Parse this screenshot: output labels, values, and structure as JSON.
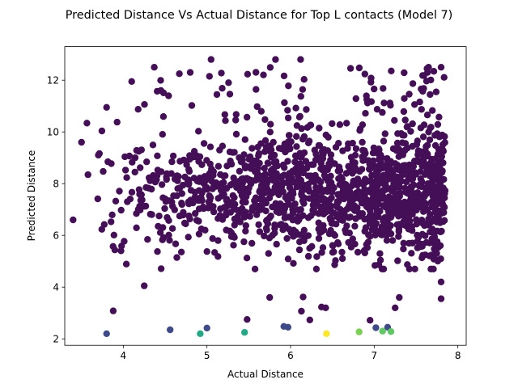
{
  "chart_data": {
    "type": "scatter",
    "title": "Predicted Distance Vs Actual Distance for Top L contacts (Model 7)",
    "xlabel": "Actual Distance",
    "ylabel": "Predicted Distance",
    "xlim": [
      3.3,
      8.1
    ],
    "ylim": [
      1.75,
      13.3
    ],
    "xticks": [
      4,
      5,
      6,
      7,
      8
    ],
    "yticks": [
      2,
      4,
      6,
      8,
      10,
      12
    ],
    "grid": false,
    "legend": "none",
    "colormap": "viridis",
    "cluster": {
      "count": 1500,
      "color": "#440f57",
      "x_range": [
        3.45,
        7.85
      ],
      "y_center": 7.6,
      "y_spread": 1.15,
      "y_min": 4.7,
      "y_max": 12.8
    },
    "outliers": [
      {
        "x": 3.4,
        "y": 6.6,
        "color": "#440f57"
      },
      {
        "x": 3.5,
        "y": 9.6,
        "color": "#440f57"
      },
      {
        "x": 3.8,
        "y": 10.95,
        "color": "#440f57"
      },
      {
        "x": 4.1,
        "y": 11.95,
        "color": "#440f57"
      },
      {
        "x": 4.37,
        "y": 12.5,
        "color": "#440f57"
      },
      {
        "x": 4.45,
        "y": 11.6,
        "color": "#440f57"
      },
      {
        "x": 4.67,
        "y": 12.25,
        "color": "#440f57"
      },
      {
        "x": 4.8,
        "y": 12.3,
        "color": "#440f57"
      },
      {
        "x": 5.05,
        "y": 12.8,
        "color": "#440f57"
      },
      {
        "x": 5.03,
        "y": 12.15,
        "color": "#440f57"
      },
      {
        "x": 5.82,
        "y": 12.8,
        "color": "#440f57"
      },
      {
        "x": 6.12,
        "y": 12.8,
        "color": "#440f57"
      },
      {
        "x": 7.65,
        "y": 12.5,
        "color": "#440f57"
      },
      {
        "x": 7.8,
        "y": 12.5,
        "color": "#440f57"
      },
      {
        "x": 4.25,
        "y": 4.05,
        "color": "#440f57"
      },
      {
        "x": 3.88,
        "y": 3.08,
        "color": "#440f57"
      },
      {
        "x": 5.75,
        "y": 3.6,
        "color": "#440f57"
      },
      {
        "x": 6.15,
        "y": 3.62,
        "color": "#440f57"
      },
      {
        "x": 6.13,
        "y": 3.07,
        "color": "#440f57"
      },
      {
        "x": 6.37,
        "y": 3.23,
        "color": "#440f57"
      },
      {
        "x": 6.42,
        "y": 3.2,
        "color": "#440f57"
      },
      {
        "x": 7.3,
        "y": 3.6,
        "color": "#440f57"
      },
      {
        "x": 7.25,
        "y": 3.2,
        "color": "#440f57"
      },
      {
        "x": 7.8,
        "y": 4.2,
        "color": "#440f57"
      },
      {
        "x": 7.8,
        "y": 3.55,
        "color": "#440f57"
      },
      {
        "x": 5.48,
        "y": 2.75,
        "color": "#440f57"
      },
      {
        "x": 6.23,
        "y": 2.73,
        "color": "#440f57"
      },
      {
        "x": 6.95,
        "y": 2.72,
        "color": "#440f57"
      },
      {
        "x": 3.8,
        "y": 2.2,
        "color": "#3f4a8a"
      },
      {
        "x": 4.56,
        "y": 2.35,
        "color": "#3f4a8a"
      },
      {
        "x": 5.0,
        "y": 2.42,
        "color": "#3f4a8a"
      },
      {
        "x": 5.92,
        "y": 2.48,
        "color": "#3f4a8a"
      },
      {
        "x": 5.97,
        "y": 2.45,
        "color": "#3f4a8a"
      },
      {
        "x": 7.02,
        "y": 2.43,
        "color": "#3f4a8a"
      },
      {
        "x": 7.16,
        "y": 2.45,
        "color": "#3f4a8a"
      },
      {
        "x": 4.92,
        "y": 2.2,
        "color": "#22a884"
      },
      {
        "x": 5.45,
        "y": 2.25,
        "color": "#22a884"
      },
      {
        "x": 6.82,
        "y": 2.27,
        "color": "#7ad151"
      },
      {
        "x": 7.1,
        "y": 2.3,
        "color": "#5ec962"
      },
      {
        "x": 7.2,
        "y": 2.28,
        "color": "#5ec962"
      },
      {
        "x": 6.43,
        "y": 2.2,
        "color": "#fde725"
      }
    ]
  }
}
